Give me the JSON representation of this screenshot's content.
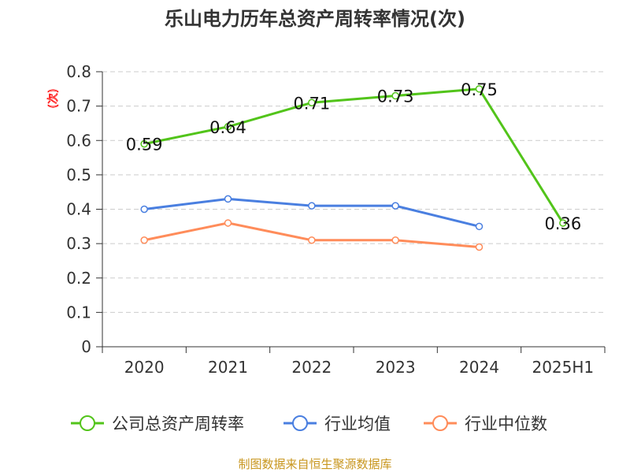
{
  "chart_data": {
    "type": "line",
    "title": "乐山电力历年总资产周转率情况(次)",
    "ylabel": "(次)",
    "categories": [
      "2020",
      "2021",
      "2022",
      "2023",
      "2024",
      "2025H1"
    ],
    "ylim": [
      0,
      0.8
    ],
    "yticks": [
      "0",
      "0.1",
      "0.2",
      "0.3",
      "0.4",
      "0.5",
      "0.6",
      "0.7",
      "0.8"
    ],
    "grid": true,
    "legend_position": "bottom",
    "series": [
      {
        "name": "公司总资产周转率",
        "color": "#52c41a",
        "values": [
          0.59,
          0.64,
          0.71,
          0.73,
          0.75,
          0.36
        ],
        "labels": [
          "0.59",
          "0.64",
          "0.71",
          "0.73",
          "0.75",
          "0.36"
        ]
      },
      {
        "name": "行业均值",
        "color": "#4a7fe0",
        "values": [
          0.4,
          0.43,
          0.41,
          0.41,
          0.35,
          null
        ]
      },
      {
        "name": "行业中位数",
        "color": "#ff8c5a",
        "values": [
          0.31,
          0.36,
          0.31,
          0.31,
          0.29,
          null
        ]
      }
    ]
  },
  "footer": "制图数据来自恒生聚源数据库"
}
